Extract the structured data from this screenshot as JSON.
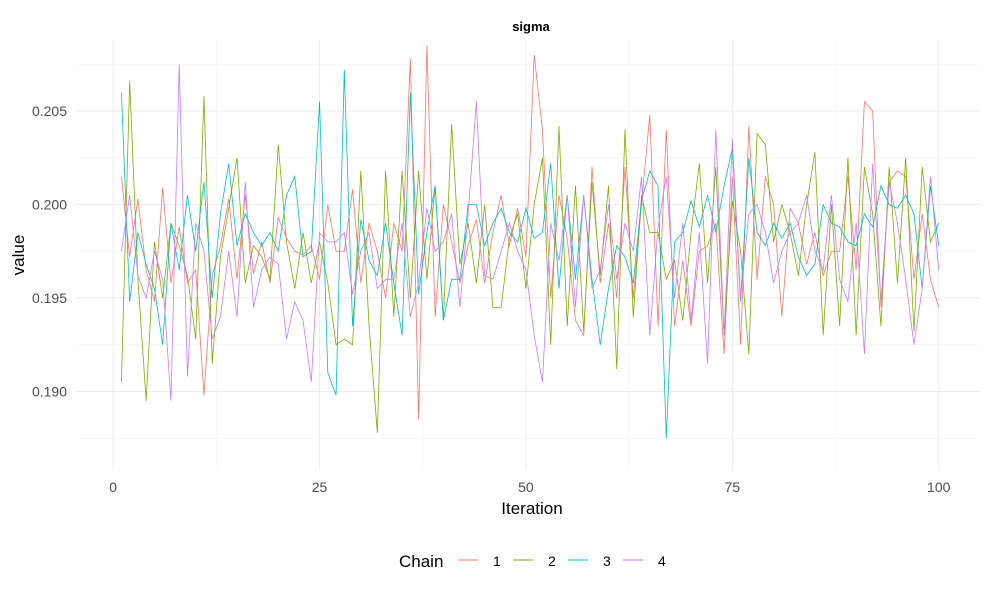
{
  "chart_data": {
    "type": "line",
    "title": "sigma",
    "xlabel": "Iteration",
    "ylabel": "value",
    "xlim": [
      -4.5,
      105
    ],
    "ylim": [
      0.1858,
      0.2088
    ],
    "x_ticks": [
      0,
      25,
      50,
      75,
      100
    ],
    "y_ticks": [
      0.19,
      0.195,
      0.2,
      0.205
    ],
    "x_tick_labels": [
      "0",
      "25",
      "50",
      "75",
      "100"
    ],
    "y_tick_labels": [
      "0.190",
      "0.195",
      "0.200",
      "0.205"
    ],
    "grid": true,
    "legend": {
      "title": "Chain",
      "position": "bottom"
    },
    "series": [
      {
        "name": "1",
        "color": "#F8766D",
        "values": [
          0.2015,
          0.1972,
          0.2003,
          0.1965,
          0.1948,
          0.2009,
          0.1958,
          0.1988,
          0.1958,
          0.1965,
          0.1898,
          0.1962,
          0.1978,
          0.2003,
          0.196,
          0.2005,
          0.1963,
          0.198,
          0.1958,
          0.1993,
          0.1982,
          0.1975,
          0.1973,
          0.1978,
          0.196,
          0.2,
          0.1975,
          0.1975,
          0.2008,
          0.1958,
          0.199,
          0.1975,
          0.195,
          0.199,
          0.1975,
          0.2078,
          0.1885,
          0.2085,
          0.194,
          0.2,
          0.198,
          0.1958,
          0.1978,
          0.1992,
          0.1958,
          0.1985,
          0.2005,
          0.1978,
          0.1998,
          0.1972,
          0.208,
          0.204,
          0.195,
          0.2005,
          0.1982,
          0.1938,
          0.193,
          0.202,
          0.1958,
          0.199,
          0.195,
          0.202,
          0.195,
          0.2,
          0.2048,
          0.1935,
          0.204,
          0.1935,
          0.197,
          0.1935,
          0.1975,
          0.1978,
          0.199,
          0.192,
          0.2015,
          0.1925,
          0.2042,
          0.196,
          0.2015,
          0.2,
          0.194,
          0.1998,
          0.199,
          0.1968,
          0.1985,
          0.1962,
          0.1975,
          0.1975,
          0.2015,
          0.1965,
          0.2055,
          0.205,
          0.1945,
          0.2012,
          0.2018,
          0.2015,
          0.196,
          0.1995,
          0.196,
          0.1945
        ]
      },
      {
        "name": "2",
        "color": "#7CAE00",
        "values": [
          0.1905,
          0.2066,
          0.196,
          0.1895,
          0.198,
          0.195,
          0.199,
          0.1978,
          0.1962,
          0.1928,
          0.2058,
          0.1915,
          0.1972,
          0.1998,
          0.2025,
          0.1958,
          0.1978,
          0.1972,
          0.196,
          0.2032,
          0.198,
          0.1955,
          0.1985,
          0.1958,
          0.198,
          0.1958,
          0.1925,
          0.1928,
          0.1925,
          0.2018,
          0.1935,
          0.1878,
          0.2018,
          0.194,
          0.2018,
          0.195,
          0.2018,
          0.196,
          0.201,
          0.1938,
          0.2043,
          0.1968,
          0.199,
          0.1958,
          0.2,
          0.1945,
          0.1945,
          0.1982,
          0.1995,
          0.1955,
          0.2,
          0.2025,
          0.1925,
          0.2042,
          0.1935,
          0.201,
          0.1932,
          0.2012,
          0.1962,
          0.201,
          0.1912,
          0.204,
          0.194,
          0.2005,
          0.1985,
          0.1985,
          0.196,
          0.197,
          0.1938,
          0.1985,
          0.2022,
          0.1958,
          0.202,
          0.193,
          0.2002,
          0.1975,
          0.192,
          0.2038,
          0.2032,
          0.198,
          0.2,
          0.1985,
          0.1962,
          0.2,
          0.2028,
          0.193,
          0.2,
          0.1935,
          0.2025,
          0.193,
          0.202,
          0.1995,
          0.1935,
          0.202,
          0.1958,
          0.2025,
          0.1932,
          0.202,
          0.198,
          0.199
        ]
      },
      {
        "name": "3",
        "color": "#00BFC4",
        "values": [
          0.206,
          0.1948,
          0.1985,
          0.1968,
          0.1955,
          0.1925,
          0.199,
          0.1965,
          0.2005,
          0.1975,
          0.2012,
          0.195,
          0.1995,
          0.2022,
          0.1978,
          0.1995,
          0.1985,
          0.1978,
          0.1985,
          0.1975,
          0.2005,
          0.2015,
          0.1972,
          0.1975,
          0.2055,
          0.191,
          0.1898,
          0.2072,
          0.1935,
          0.1992,
          0.197,
          0.1962,
          0.199,
          0.1958,
          0.193,
          0.206,
          0.1952,
          0.1985,
          0.201,
          0.1938,
          0.196,
          0.196,
          0.2,
          0.2,
          0.1978,
          0.199,
          0.1998,
          0.1985,
          0.198,
          0.1998,
          0.1982,
          0.1985,
          0.2022,
          0.1955,
          0.2005,
          0.196,
          0.2005,
          0.196,
          0.1925,
          0.1955,
          0.1978,
          0.1972,
          0.1958,
          0.2002,
          0.2018,
          0.201,
          0.1875,
          0.198,
          0.1985,
          0.2002,
          0.1988,
          0.2005,
          0.1985,
          0.201,
          0.203,
          0.1948,
          0.2025,
          0.1985,
          0.1978,
          0.199,
          0.1982,
          0.199,
          0.1972,
          0.1962,
          0.1968,
          0.2,
          0.199,
          0.1988,
          0.198,
          0.1978,
          0.1995,
          0.1988,
          0.201,
          0.2,
          0.1998,
          0.2005,
          0.1995,
          0.1955,
          0.201,
          0.1978
        ]
      },
      {
        "name": "4",
        "color": "#C77CFF",
        "values": [
          0.1975,
          0.2005,
          0.1962,
          0.195,
          0.1975,
          0.196,
          0.1895,
          0.2075,
          0.1908,
          0.199,
          0.1975,
          0.1928,
          0.194,
          0.1975,
          0.194,
          0.2012,
          0.1945,
          0.1965,
          0.1972,
          0.1968,
          0.1928,
          0.1948,
          0.1938,
          0.1905,
          0.1985,
          0.198,
          0.198,
          0.1985,
          0.1952,
          0.1975,
          0.1985,
          0.1955,
          0.196,
          0.196,
          0.199,
          0.194,
          0.1958,
          0.1998,
          0.1975,
          0.198,
          0.1995,
          0.1945,
          0.1995,
          0.2055,
          0.1962,
          0.196,
          0.1975,
          0.199,
          0.1975,
          0.1965,
          0.193,
          0.1905,
          0.199,
          0.197,
          0.2005,
          0.1945,
          0.2005,
          0.1955,
          0.1965,
          0.2,
          0.196,
          0.199,
          0.1975,
          0.2015,
          0.193,
          0.1988,
          0.2015,
          0.195,
          0.199,
          0.1938,
          0.1985,
          0.1915,
          0.204,
          0.193,
          0.2035,
          0.195,
          0.1995,
          0.2,
          0.1985,
          0.1958,
          0.1975,
          0.1985,
          0.199,
          0.2005,
          0.1975,
          0.1965,
          0.2005,
          0.196,
          0.1948,
          0.199,
          0.192,
          0.2022,
          0.1948,
          0.2012,
          0.199,
          0.196,
          0.1925,
          0.1955,
          0.2015,
          0.1965
        ]
      }
    ]
  }
}
